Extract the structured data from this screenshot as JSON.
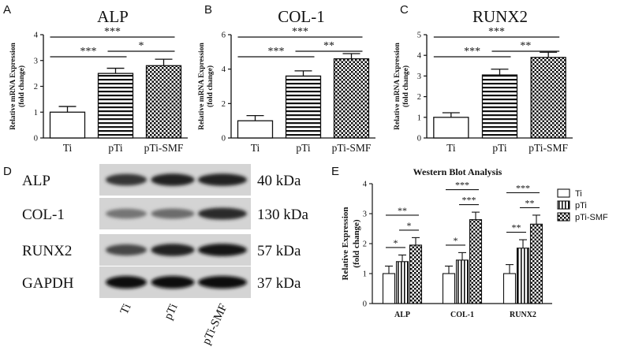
{
  "chart_data": [
    {
      "panel": "A",
      "type": "bar",
      "title": "ALP",
      "ylabel": [
        "Relative mRNA Expression",
        "(fold change)"
      ],
      "categories": [
        "Ti",
        "pTi",
        "pTi-SMF"
      ],
      "values": [
        1.0,
        2.5,
        2.8
      ],
      "errors": [
        0.22,
        0.2,
        0.25
      ],
      "ylim": [
        0,
        4
      ],
      "yticks": [
        "0",
        "1",
        "2",
        "3",
        "4"
      ],
      "significance": [
        {
          "from": 0,
          "to": 1,
          "label": "***"
        },
        {
          "from": 1,
          "to": 2,
          "label": "*"
        },
        {
          "from": 0,
          "to": 2,
          "label": "***"
        }
      ]
    },
    {
      "panel": "B",
      "type": "bar",
      "title": "COL-1",
      "ylabel": [
        "Relative mRNA Expression",
        "(fold change)"
      ],
      "categories": [
        "Ti",
        "pTi",
        "pTi-SMF"
      ],
      "values": [
        1.0,
        3.6,
        4.6
      ],
      "errors": [
        0.3,
        0.3,
        0.3
      ],
      "ylim": [
        0,
        6
      ],
      "yticks": [
        "0",
        "2",
        "4",
        "6"
      ],
      "significance": [
        {
          "from": 0,
          "to": 1,
          "label": "***"
        },
        {
          "from": 1,
          "to": 2,
          "label": "**"
        },
        {
          "from": 0,
          "to": 2,
          "label": "***"
        }
      ]
    },
    {
      "panel": "C",
      "type": "bar",
      "title": "RUNX2",
      "ylabel": [
        "Relative mRNA Expression",
        "(fold change)"
      ],
      "categories": [
        "Ti",
        "pTi",
        "pTi-SMF"
      ],
      "values": [
        1.0,
        3.05,
        3.9
      ],
      "errors": [
        0.22,
        0.28,
        0.25
      ],
      "ylim": [
        0,
        5
      ],
      "yticks": [
        "0",
        "1",
        "2",
        "3",
        "4",
        "5"
      ],
      "significance": [
        {
          "from": 0,
          "to": 1,
          "label": "***"
        },
        {
          "from": 1,
          "to": 2,
          "label": "**"
        },
        {
          "from": 0,
          "to": 2,
          "label": "***"
        }
      ]
    },
    {
      "panel": "E",
      "type": "bar",
      "title": "Western Blot Analysis",
      "ylabel": [
        "Relative Expression",
        "(fold change)"
      ],
      "categories": [
        "ALP",
        "COL-1",
        "RUNX2"
      ],
      "ylim": [
        0,
        4
      ],
      "yticks": [
        "0",
        "1",
        "2",
        "3",
        "4"
      ],
      "series": [
        {
          "name": "Ti",
          "values": [
            1.0,
            1.0,
            1.0
          ],
          "errors": [
            0.25,
            0.25,
            0.3
          ]
        },
        {
          "name": "pTi",
          "values": [
            1.4,
            1.45,
            1.85
          ],
          "errors": [
            0.22,
            0.25,
            0.28
          ]
        },
        {
          "name": "pTi-SMF",
          "values": [
            1.95,
            2.8,
            2.65
          ],
          "errors": [
            0.25,
            0.25,
            0.3
          ]
        }
      ],
      "significance": [
        {
          "group": 0,
          "from": 0,
          "to": 1,
          "label": "*"
        },
        {
          "group": 0,
          "from": 1,
          "to": 2,
          "label": "*"
        },
        {
          "group": 0,
          "from": 0,
          "to": 2,
          "label": "**"
        },
        {
          "group": 1,
          "from": 0,
          "to": 1,
          "label": "*"
        },
        {
          "group": 1,
          "from": 1,
          "to": 2,
          "label": "***"
        },
        {
          "group": 1,
          "from": 0,
          "to": 2,
          "label": "***"
        },
        {
          "group": 2,
          "from": 0,
          "to": 1,
          "label": "**"
        },
        {
          "group": 2,
          "from": 1,
          "to": 2,
          "label": "**"
        },
        {
          "group": 2,
          "from": 0,
          "to": 2,
          "label": "***"
        }
      ],
      "legend": "top-right"
    }
  ],
  "blot": {
    "panel": "D",
    "rows": [
      {
        "protein": "ALP",
        "size": "40 kDa",
        "intensity": [
          0.8,
          0.9,
          0.9
        ]
      },
      {
        "protein": "COL-1",
        "size": "130 kDa",
        "intensity": [
          0.45,
          0.5,
          0.85
        ]
      },
      {
        "protein": "RUNX2",
        "size": "57 kDa",
        "intensity": [
          0.7,
          0.9,
          0.95
        ]
      },
      {
        "protein": "GAPDH",
        "size": "37 kDa",
        "intensity": [
          1.0,
          1.0,
          1.0
        ]
      }
    ],
    "lanes": [
      "Ti",
      "pTi",
      "pTi-SMF"
    ]
  }
}
